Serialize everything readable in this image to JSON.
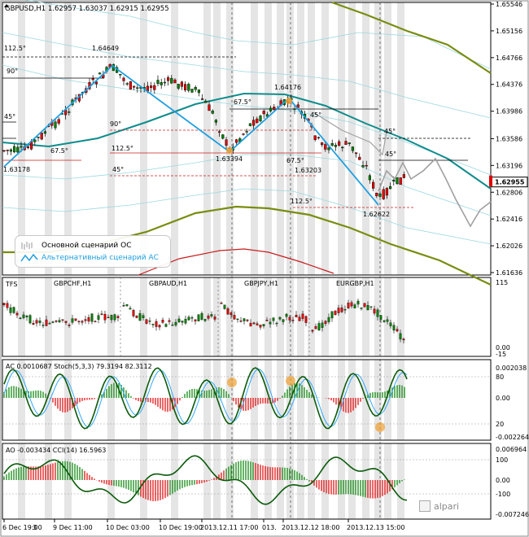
{
  "chart_data": {
    "type": "line",
    "main": {
      "header": "GBPUSD,H1  1.62957 1.63037 1.62915 1.62955",
      "current_price": "1.62955",
      "price_axis": [
        "1.65546",
        "1.65156",
        "1.64766",
        "1.64376",
        "1.63986",
        "1.63586",
        "1.63196",
        "1.62806",
        "1.62416",
        "1.62026",
        "1.61636"
      ],
      "swing_labels": [
        {
          "text": "1.64649",
          "price": 1.64649
        },
        {
          "text": "1.63394",
          "price": 1.63394
        },
        {
          "text": "1.64176",
          "price": 1.64176
        },
        {
          "text": "1.63203",
          "price": 1.63203
        },
        {
          "text": "1.62622",
          "price": 1.62622
        },
        {
          "text": "1.63178",
          "price": 1.63178
        }
      ],
      "angle_labels": [
        "112.5°",
        "90°",
        "45°",
        "67.5°",
        "90°",
        "112.5°",
        "45°",
        "67.5°",
        "45°",
        "67.5°",
        "112.5°",
        "45°",
        "45°"
      ],
      "series": [
        {
          "name": "Основной сценарий ОС",
          "color": "#a0a0a0",
          "values": [
            1.6296,
            1.6305,
            1.6318,
            1.6335,
            1.6352,
            1.634,
            1.6328,
            1.6345,
            1.636,
            1.6348,
            1.632,
            1.6305,
            1.6285,
            1.6262,
            1.625,
            1.627,
            1.629
          ]
        },
        {
          "name": "Альтернативный сценарий АС",
          "color": "#1e9fe0",
          "values": [
            1.63178,
            1.64649,
            1.63394,
            1.64176,
            1.62622
          ]
        }
      ]
    },
    "tfs": {
      "title": "TFS",
      "pairs": [
        "GBPCHF,H1",
        "GBPAUD,H1",
        "GBPJPY,H1",
        "EURGBP,H1"
      ],
      "axis": [
        "115",
        "0.00",
        "-15"
      ]
    },
    "ac": {
      "title": "AC 0.0010687  Stoch(5,3,3) 79.3194 82.3112",
      "axis": [
        "0.002038",
        "80",
        "0.00",
        "20",
        "-0.002264"
      ]
    },
    "ao": {
      "title": "AO -0.003434  CCI(14) 16.5963",
      "axis": [
        "0.006964",
        "100",
        "0.00",
        "-100",
        "-0.007246"
      ]
    },
    "time_axis": [
      "6 Dec 19:00",
      "9 Dec 11:00",
      "10 Dec 03:00",
      "10 Dec 19:00",
      "2013.12.11 17:00",
      "013.",
      "2013.12.12 18:00",
      "2013.12.13 15:00"
    ],
    "time_labels_partial": [
      "3"
    ]
  },
  "legend": {
    "main_label": "Основной сценарий ОС",
    "alt_label": "Альтернативный сценарий АС"
  },
  "brand": "alpari",
  "colors": {
    "bull": "#008000",
    "bear": "#e00000",
    "teal": "#0f8c8c",
    "olive": "#7a8c10",
    "lightteal": "#9ad8e0",
    "blue": "#1e9fe0",
    "redcurve": "#c81e1e"
  }
}
